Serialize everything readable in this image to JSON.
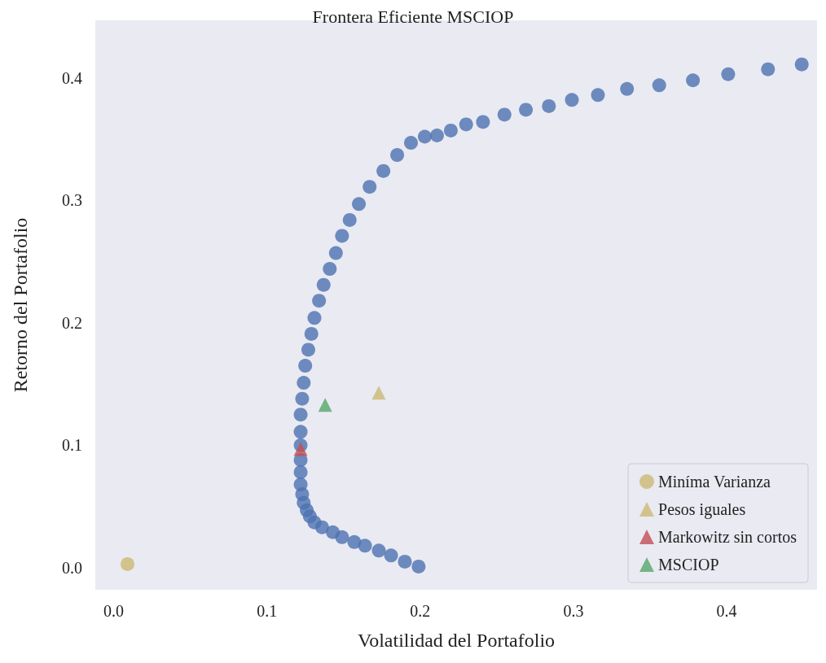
{
  "chart_data": {
    "type": "scatter",
    "title": "Frontera Eficiente MSCIOP",
    "xlabel": "Volatilidad del Portafolio",
    "ylabel": "Retorno del Portafolio",
    "xlim": [
      -0.012,
      0.459
    ],
    "ylim": [
      -0.018,
      0.447
    ],
    "xticks": [
      {
        "value": 0,
        "label": "0.0"
      },
      0.1,
      0.2,
      0.3,
      0.4
    ],
    "yticks": [
      {
        "value": 0,
        "label": "0.0"
      },
      0.1,
      0.2,
      0.3,
      0.4
    ],
    "grid": false,
    "legend": "bottom right",
    "series": [
      {
        "color": "#4c72b0",
        "marker": "circle",
        "x": [
          0.199,
          0.19,
          0.181,
          0.173,
          0.164,
          0.157,
          0.149,
          0.143,
          0.136,
          0.131,
          0.128,
          0.126,
          0.124,
          0.123,
          0.122,
          0.122,
          0.122,
          0.122,
          0.122,
          0.122,
          0.123,
          0.124,
          0.125,
          0.127,
          0.129,
          0.131,
          0.134,
          0.137,
          0.141,
          0.145,
          0.149,
          0.154,
          0.16,
          0.167,
          0.176,
          0.185,
          0.194,
          0.203,
          0.211,
          0.22,
          0.23,
          0.241,
          0.255,
          0.269,
          0.284,
          0.299,
          0.316,
          0.335,
          0.356,
          0.378,
          0.401,
          0.427,
          0.449
        ],
        "values": [
          0.001,
          0.005,
          0.01,
          0.014,
          0.018,
          0.021,
          0.025,
          0.029,
          0.033,
          0.037,
          0.042,
          0.047,
          0.053,
          0.06,
          0.068,
          0.078,
          0.088,
          0.1,
          0.111,
          0.125,
          0.138,
          0.151,
          0.165,
          0.178,
          0.191,
          0.204,
          0.218,
          0.231,
          0.244,
          0.257,
          0.271,
          0.284,
          0.297,
          0.311,
          0.324,
          0.337,
          0.347,
          0.352,
          0.353,
          0.357,
          0.362,
          0.364,
          0.37,
          0.374,
          0.377,
          0.382,
          0.386,
          0.391,
          0.394,
          0.398,
          0.403,
          0.407,
          0.411
        ]
      },
      {
        "name": "Miníma Varianza",
        "color": "#ccb974",
        "marker": "circle",
        "x": [
          0.009
        ],
        "values": [
          0.003
        ]
      },
      {
        "name": "Pesos iguales",
        "color": "#ccb974",
        "marker": "triangle",
        "x": [
          0.173
        ],
        "values": [
          0.143
        ]
      },
      {
        "name": "Markowitz sin cortos",
        "color": "#c44e52",
        "marker": "triangle",
        "x": [
          0.122
        ],
        "values": [
          0.097
        ]
      },
      {
        "name": "MSCIOP",
        "color": "#55a868",
        "marker": "triangle",
        "x": [
          0.138
        ],
        "values": [
          0.133
        ]
      }
    ]
  }
}
